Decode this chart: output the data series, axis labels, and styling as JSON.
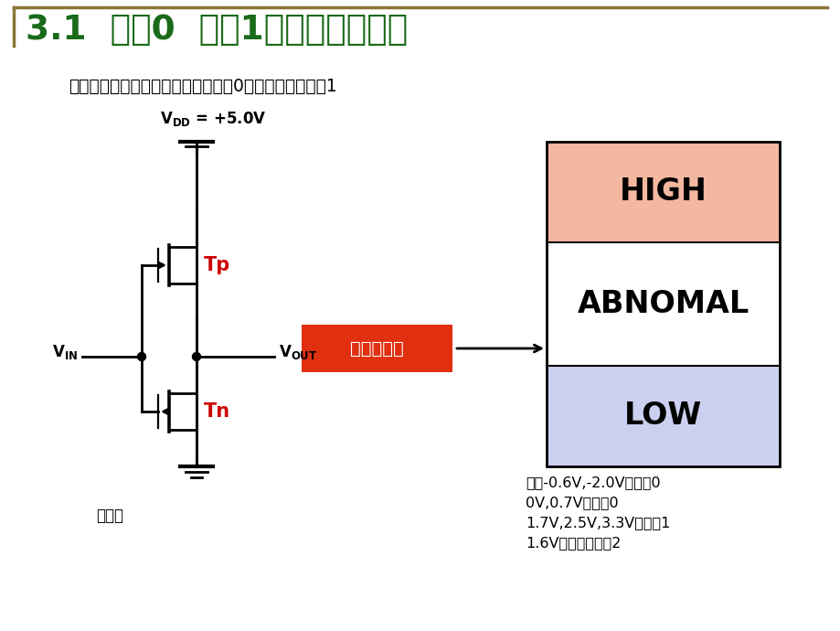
{
  "title": "3.1  逻辑0  逻辑1以及不确定逻辑",
  "subtitle": "不确定逻辑：电路可将其解释为逻辑0也可以解释为逻辑1",
  "title_color": "#1a6b1a",
  "subtitle_color": "#000000",
  "bg_color": "#ffffff",
  "border_top_color": "#8B7536",
  "high_color": "#f4b8a0",
  "abnomal_color": "#ffffff",
  "low_color": "#ccd0f0",
  "box_border_color": "#000000",
  "red_box_color": "#e03010",
  "red_box_text": "不确定逻辑",
  "red_box_text_color": "#ffffff",
  "high_text": "HIGH",
  "abnomal_text": "ABNOMAL",
  "low_text": "LOW",
  "tp_label": "Tp",
  "tn_label": "Tn",
  "inverter_label": "反向器",
  "note_line1": "因此-0.6V,-2.0V是逻辑0",
  "note_line2": "0V,0.7V是逻辑0",
  "note_line3": "1.7V,2.5V,3.3V为逻辑1",
  "note_line4": "1.6V为不确定逻辑2",
  "circuit_color": "#000000",
  "tp_color": "#cc0000",
  "tn_color": "#cc0000"
}
